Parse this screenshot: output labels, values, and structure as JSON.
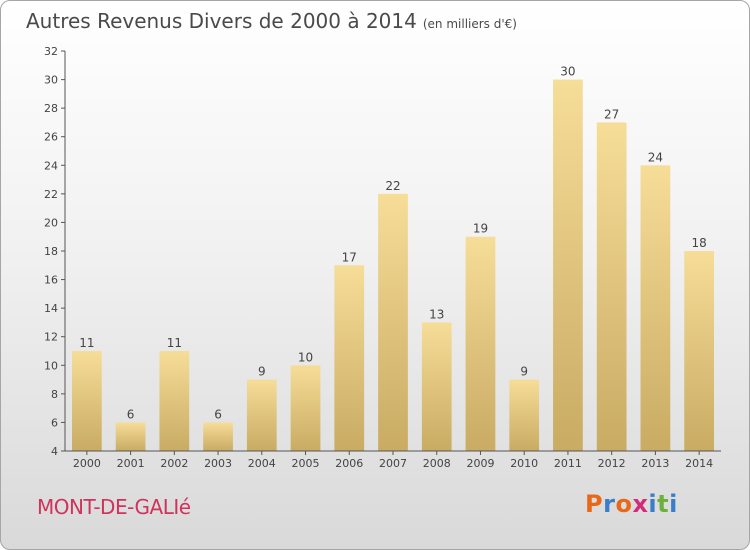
{
  "title": "Autres Revenus Divers de 2000 à 2014",
  "subtitle": "(en milliers d'€)",
  "place_label": "MONT-DE-GALIé",
  "logo": {
    "text": "Proxiti",
    "colors": [
      "#e8681a",
      "#3a7dc9",
      "#e8681a",
      "#d42a7a",
      "#3a7dc9",
      "#6ab23c",
      "#3a7dc9"
    ]
  },
  "chart_data": {
    "type": "bar",
    "categories": [
      "2000",
      "2001",
      "2002",
      "2003",
      "2004",
      "2005",
      "2006",
      "2007",
      "2008",
      "2009",
      "2010",
      "2011",
      "2012",
      "2013",
      "2014"
    ],
    "values": [
      11,
      6,
      11,
      6,
      9,
      10,
      17,
      22,
      13,
      19,
      9,
      30,
      27,
      24,
      18
    ],
    "ylim": [
      4,
      32
    ],
    "yticks": [
      4,
      6,
      8,
      10,
      12,
      14,
      16,
      18,
      20,
      22,
      24,
      26,
      28,
      30,
      32
    ],
    "grid": false,
    "bar_color": "#e9c97c"
  }
}
